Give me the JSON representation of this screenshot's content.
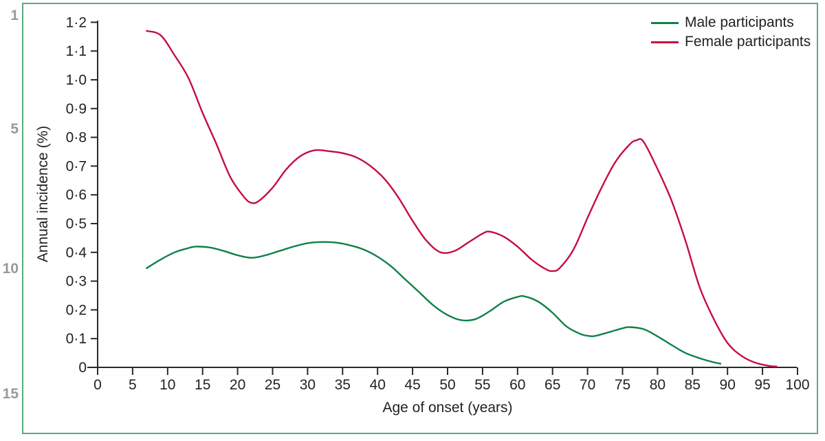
{
  "page": {
    "background": "#ffffff"
  },
  "proof_line_numbers": [
    "1",
    "5",
    "10",
    "15"
  ],
  "panel": {
    "border_color": "#58aa80"
  },
  "chart_data": {
    "type": "line",
    "title": "",
    "xlabel": "Age of onset (years)",
    "ylabel": "Annual incidence (%)",
    "xlim": [
      0,
      100
    ],
    "ylim": [
      0,
      1.2
    ],
    "grid": false,
    "legend_position": "top-right",
    "axis_color": "#2b272a",
    "text_color": "#242124",
    "x_tick_values": [
      0,
      5,
      10,
      15,
      20,
      25,
      30,
      35,
      40,
      45,
      50,
      55,
      60,
      65,
      70,
      75,
      80,
      85,
      90,
      95,
      100
    ],
    "x_tick_labels": [
      "0",
      "5",
      "10",
      "15",
      "20",
      "25",
      "30",
      "35",
      "40",
      "45",
      "50",
      "55",
      "60",
      "65",
      "70",
      "75",
      "80",
      "85",
      "90",
      "95",
      "100"
    ],
    "y_tick_values": [
      0,
      0.1,
      0.2,
      0.3,
      0.4,
      0.5,
      0.6,
      0.7,
      0.8,
      0.9,
      1.0,
      1.1,
      1.2
    ],
    "y_tick_labels": [
      "0",
      "0·1",
      "0·2",
      "0·3",
      "0·4",
      "0·5",
      "0·6",
      "0·7",
      "0·8",
      "0·9",
      "1·0",
      "1·1",
      "1·2"
    ],
    "series": [
      {
        "name": "Male participants",
        "color": "#108048",
        "points": [
          [
            7,
            0.345
          ],
          [
            9,
            0.375
          ],
          [
            11,
            0.4
          ],
          [
            13,
            0.415
          ],
          [
            14,
            0.42
          ],
          [
            16,
            0.417
          ],
          [
            18,
            0.405
          ],
          [
            20,
            0.39
          ],
          [
            22,
            0.381
          ],
          [
            24,
            0.39
          ],
          [
            26,
            0.405
          ],
          [
            28,
            0.42
          ],
          [
            30,
            0.432
          ],
          [
            32,
            0.436
          ],
          [
            34,
            0.434
          ],
          [
            36,
            0.425
          ],
          [
            38,
            0.41
          ],
          [
            40,
            0.385
          ],
          [
            42,
            0.35
          ],
          [
            44,
            0.305
          ],
          [
            46,
            0.26
          ],
          [
            48,
            0.215
          ],
          [
            50,
            0.182
          ],
          [
            52,
            0.164
          ],
          [
            54,
            0.168
          ],
          [
            56,
            0.195
          ],
          [
            58,
            0.228
          ],
          [
            60,
            0.245
          ],
          [
            61,
            0.247
          ],
          [
            63,
            0.228
          ],
          [
            65,
            0.19
          ],
          [
            67,
            0.142
          ],
          [
            69,
            0.116
          ],
          [
            70,
            0.11
          ],
          [
            71,
            0.109
          ],
          [
            73,
            0.122
          ],
          [
            75,
            0.136
          ],
          [
            76,
            0.14
          ],
          [
            78,
            0.133
          ],
          [
            80,
            0.108
          ],
          [
            82,
            0.078
          ],
          [
            84,
            0.05
          ],
          [
            86,
            0.032
          ],
          [
            88,
            0.018
          ],
          [
            89,
            0.013
          ]
        ]
      },
      {
        "name": "Female participants",
        "color": "#c50d3e",
        "points": [
          [
            7,
            1.17
          ],
          [
            9,
            1.155
          ],
          [
            11,
            1.085
          ],
          [
            13,
            1.005
          ],
          [
            15,
            0.885
          ],
          [
            17,
            0.775
          ],
          [
            19,
            0.66
          ],
          [
            21,
            0.59
          ],
          [
            22,
            0.572
          ],
          [
            23,
            0.578
          ],
          [
            25,
            0.625
          ],
          [
            27,
            0.69
          ],
          [
            29,
            0.735
          ],
          [
            31,
            0.755
          ],
          [
            33,
            0.752
          ],
          [
            35,
            0.745
          ],
          [
            37,
            0.73
          ],
          [
            39,
            0.7
          ],
          [
            41,
            0.655
          ],
          [
            43,
            0.59
          ],
          [
            45,
            0.51
          ],
          [
            47,
            0.44
          ],
          [
            49,
            0.4
          ],
          [
            51,
            0.405
          ],
          [
            53,
            0.435
          ],
          [
            55,
            0.465
          ],
          [
            56,
            0.472
          ],
          [
            58,
            0.455
          ],
          [
            60,
            0.42
          ],
          [
            62,
            0.375
          ],
          [
            64,
            0.342
          ],
          [
            65,
            0.335
          ],
          [
            66,
            0.345
          ],
          [
            68,
            0.41
          ],
          [
            70,
            0.52
          ],
          [
            72,
            0.625
          ],
          [
            74,
            0.715
          ],
          [
            76,
            0.775
          ],
          [
            77,
            0.79
          ],
          [
            78,
            0.785
          ],
          [
            80,
            0.69
          ],
          [
            82,
            0.58
          ],
          [
            84,
            0.44
          ],
          [
            86,
            0.28
          ],
          [
            88,
            0.17
          ],
          [
            90,
            0.085
          ],
          [
            92,
            0.04
          ],
          [
            94,
            0.016
          ],
          [
            96,
            0.005
          ],
          [
            97,
            0.003
          ]
        ]
      }
    ]
  }
}
